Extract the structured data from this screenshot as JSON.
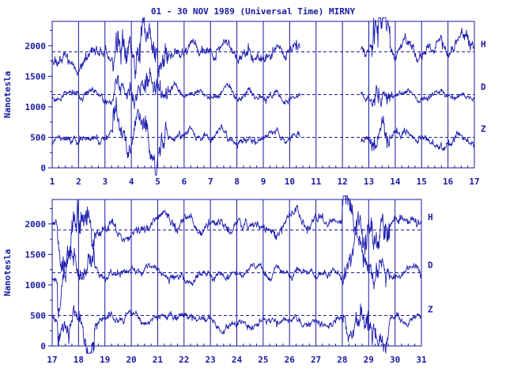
{
  "title": "01 - 30 NOV 1989 (Universal Time) MIRNY",
  "colors": {
    "ink": "#1a1aa0",
    "trace": "#1f1fb0",
    "background": "#ffffff"
  },
  "chart_data": [
    {
      "type": "line",
      "ylabel": "Nanotesla",
      "xlabel": "",
      "x_ticks": [
        "1",
        "2",
        "3",
        "4",
        "5",
        "6",
        "7",
        "8",
        "9",
        "10",
        "11",
        "12",
        "13",
        "14",
        "15",
        "16",
        "17"
      ],
      "xlim": [
        1,
        17
      ],
      "ylim": [
        0,
        2400
      ],
      "y_ticks": [
        "0",
        "500",
        "1000",
        "1500",
        "2000"
      ],
      "baselines": [
        1900,
        1200,
        500
      ],
      "series": [
        {
          "name": "H",
          "base": 1900,
          "amp": 220,
          "seed": 11,
          "segments": [
            [
              1,
              10.4
            ],
            [
              12.7,
              17
            ]
          ],
          "storms": [
            [
              3.3,
              5.4
            ],
            [
              13.1,
              13.8
            ]
          ]
        },
        {
          "name": "D",
          "base": 1200,
          "amp": 130,
          "seed": 23,
          "segments": [
            [
              1,
              10.4
            ],
            [
              12.7,
              17
            ]
          ],
          "storms": [
            [
              3.3,
              5.4
            ],
            [
              13.1,
              13.8
            ]
          ]
        },
        {
          "name": "Z",
          "base": 480,
          "amp": 150,
          "seed": 37,
          "segments": [
            [
              1,
              10.4
            ],
            [
              12.7,
              17
            ]
          ],
          "storms": [
            [
              3.3,
              5.4
            ],
            [
              13.1,
              13.8
            ]
          ]
        }
      ]
    },
    {
      "type": "line",
      "ylabel": "Nanotesla",
      "xlabel": "",
      "x_ticks": [
        "17",
        "18",
        "19",
        "20",
        "21",
        "22",
        "23",
        "24",
        "25",
        "26",
        "27",
        "28",
        "29",
        "30",
        "31"
      ],
      "xlim": [
        17,
        31
      ],
      "ylim": [
        0,
        2400
      ],
      "y_ticks": [
        "0",
        "500",
        "1000",
        "1500",
        "2000"
      ],
      "baselines": [
        1900,
        1200,
        500
      ],
      "series": [
        {
          "name": "H",
          "base": 1980,
          "amp": 200,
          "seed": 51,
          "segments": [
            [
              17,
              31
            ]
          ],
          "storms": [
            [
              17.2,
              18.6
            ],
            [
              28,
              29.8
            ]
          ]
        },
        {
          "name": "D",
          "base": 1200,
          "amp": 140,
          "seed": 67,
          "segments": [
            [
              17,
              31
            ]
          ],
          "storms": [
            [
              17.2,
              18.6
            ],
            [
              28,
              29.8
            ]
          ]
        },
        {
          "name": "Z",
          "base": 440,
          "amp": 150,
          "seed": 83,
          "segments": [
            [
              17,
              31
            ]
          ],
          "storms": [
            [
              17.2,
              18.6
            ],
            [
              28,
              29.8
            ]
          ]
        }
      ]
    }
  ]
}
